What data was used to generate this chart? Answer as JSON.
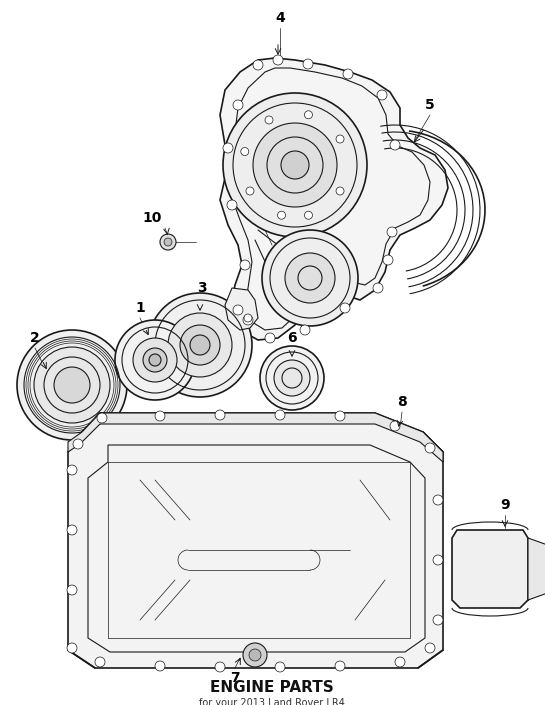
{
  "bg_color": "#ffffff",
  "line_color": "#1a1a1a",
  "label_color": "#000000",
  "title": "ENGINE PARTS",
  "subtitle": "for your 2013 Land Rover LR4",
  "figsize": [
    5.45,
    7.05
  ],
  "dpi": 100
}
